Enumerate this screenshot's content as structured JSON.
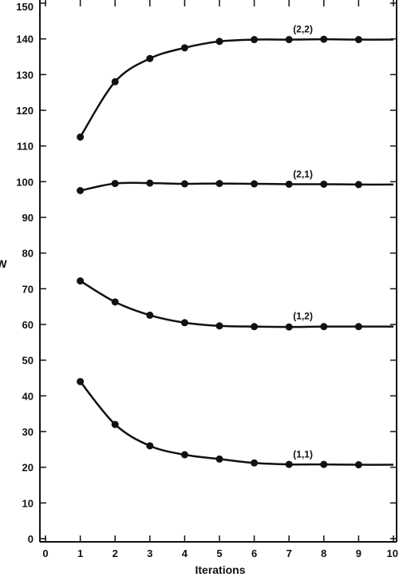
{
  "chart_data": {
    "type": "line",
    "title": "",
    "xlabel": "Iterations",
    "ylabel": "W",
    "xlim": [
      0,
      10
    ],
    "ylim": [
      0,
      150
    ],
    "x_ticks": [
      0,
      1,
      2,
      3,
      4,
      5,
      6,
      7,
      8,
      9,
      10
    ],
    "y_ticks": [
      0,
      10,
      20,
      30,
      40,
      50,
      60,
      70,
      80,
      90,
      100,
      110,
      120,
      130,
      140,
      150
    ],
    "grid": false,
    "legend": "none (series labelled inline)",
    "colors": {
      "line": "#111111",
      "marker": "#111111",
      "axis": "#111111",
      "background": "#ffffff"
    },
    "series": [
      {
        "name": "(2,2)",
        "x": [
          1,
          2,
          3,
          4,
          5,
          6,
          7,
          8,
          9
        ],
        "y": [
          112.5,
          128,
          134.5,
          137.5,
          139.3,
          139.8,
          139.8,
          139.9,
          139.8
        ]
      },
      {
        "name": "(2,1)",
        "x": [
          1,
          2,
          3,
          4,
          5,
          6,
          7,
          8,
          9
        ],
        "y": [
          97.5,
          99.5,
          99.6,
          99.4,
          99.5,
          99.4,
          99.3,
          99.3,
          99.2
        ]
      },
      {
        "name": "(1,2)",
        "x": [
          1,
          2,
          3,
          4,
          5,
          6,
          7,
          8,
          9
        ],
        "y": [
          72.2,
          66.3,
          62.6,
          60.5,
          59.6,
          59.4,
          59.3,
          59.4,
          59.4
        ]
      },
      {
        "name": "(1,1)",
        "x": [
          1,
          2,
          3,
          4,
          5,
          6,
          7,
          8,
          9
        ],
        "y": [
          44,
          32,
          26,
          23.5,
          22.3,
          21.2,
          20.8,
          20.8,
          20.7
        ]
      }
    ]
  }
}
